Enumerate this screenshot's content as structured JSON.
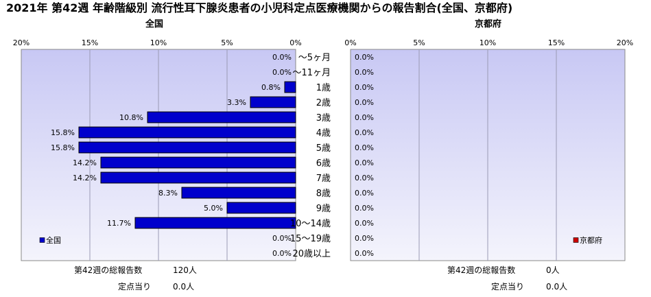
{
  "title": "2021年 第42週 年齢階級別 流行性耳下腺炎患者の小児科定点医療機関からの報告割合(全国、京都府)",
  "chart_data": [
    {
      "type": "bar",
      "orientation": "horizontal",
      "direction": "right-to-left",
      "title": "全国",
      "categories": [
        "～5ヶ月",
        "～11ヶ月",
        "1歳",
        "2歳",
        "3歳",
        "4歳",
        "5歳",
        "6歳",
        "7歳",
        "8歳",
        "9歳",
        "10～14歳",
        "15～19歳",
        "20歳以上"
      ],
      "series": [
        {
          "name": "全国",
          "values": [
            0.0,
            0.0,
            0.8,
            3.3,
            10.8,
            15.8,
            15.8,
            14.2,
            14.2,
            8.3,
            5.0,
            11.7,
            0.0,
            0.0
          ]
        }
      ],
      "value_labels": [
        "0.0%",
        "0.0%",
        "0.8%",
        "3.3%",
        "10.8%",
        "15.8%",
        "15.8%",
        "14.2%",
        "14.2%",
        "8.3%",
        "5.0%",
        "11.7%",
        "0.0%",
        "0.0%"
      ],
      "xlim": [
        0,
        20
      ],
      "xticks": [
        "20%",
        "15%",
        "10%",
        "5%",
        "0%"
      ],
      "legend_position": "bottom-left",
      "grid": true
    },
    {
      "type": "bar",
      "orientation": "horizontal",
      "direction": "left-to-right",
      "title": "京都府",
      "categories": [
        "～5ヶ月",
        "～11ヶ月",
        "1歳",
        "2歳",
        "3歳",
        "4歳",
        "5歳",
        "6歳",
        "7歳",
        "8歳",
        "9歳",
        "10～14歳",
        "15～19歳",
        "20歳以上"
      ],
      "series": [
        {
          "name": "京都府",
          "values": [
            0,
            0,
            0,
            0,
            0,
            0,
            0,
            0,
            0,
            0,
            0,
            0,
            0,
            0
          ]
        }
      ],
      "value_labels": [
        "0.0%",
        "0.0%",
        "0.0%",
        "0.0%",
        "0.0%",
        "0.0%",
        "0.0%",
        "0.0%",
        "0.0%",
        "0.0%",
        "0.0%",
        "0.0%",
        "0.0%",
        "0.0%"
      ],
      "xlim": [
        0,
        20
      ],
      "xticks": [
        "0%",
        "5%",
        "10%",
        "15%",
        "20%"
      ],
      "legend_position": "bottom-right",
      "grid": true
    }
  ],
  "stats": {
    "national": {
      "total_label": "第42週の総報告数",
      "total_value": "120人",
      "per_label": "定点当り",
      "per_value": "0.0人"
    },
    "kyoto": {
      "total_label": "第42週の総報告数",
      "total_value": "0人",
      "per_label": "定点当り",
      "per_value": "0.0人"
    }
  },
  "colors": {
    "national_bar": "#0000cc",
    "kyoto_bar": "#cc0000",
    "plot_top": "#c8c8f4",
    "plot_bottom": "#f4f4fc"
  }
}
